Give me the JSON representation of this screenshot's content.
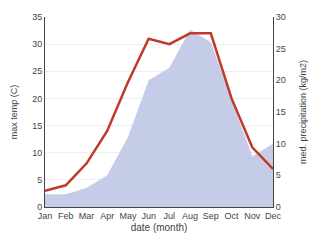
{
  "chart_data": {
    "type": "line",
    "xlabel": "date (month)",
    "ylabel": "max temp (C)",
    "y2label": "med. precipitation (kg/m2)",
    "categories": [
      "Jan",
      "Feb",
      "Mar",
      "Apr",
      "May",
      "Jun",
      "Jul",
      "Aug",
      "Sep",
      "Oct",
      "Nov",
      "Dec"
    ],
    "series": [
      {
        "type": "area",
        "color": "#c5cce8",
        "axis": "y2",
        "values": [
          2,
          2,
          3,
          5,
          11,
          20,
          22,
          28,
          26,
          17,
          8,
          10
        ]
      },
      {
        "type": "line",
        "color": "#c0392b",
        "values": [
          3,
          4,
          8,
          14,
          23,
          31,
          30,
          32,
          32,
          20,
          11,
          7
        ]
      }
    ],
    "ylim": [
      0,
      35
    ],
    "yticks": [
      0,
      5,
      10,
      15,
      20,
      25,
      30,
      35
    ],
    "y2lim": [
      0,
      30
    ],
    "y2ticks": [
      0,
      5,
      10,
      15,
      20,
      25,
      30
    ],
    "grid": true
  }
}
